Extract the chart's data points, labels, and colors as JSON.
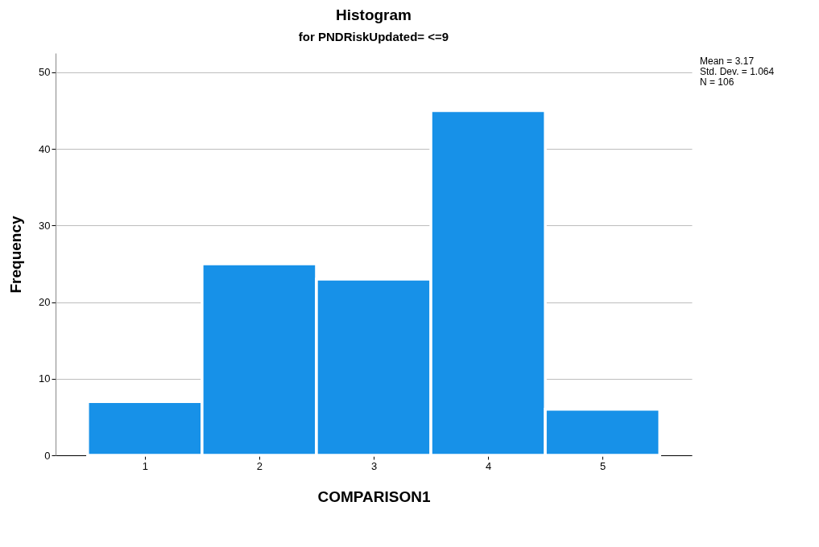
{
  "chart_data": {
    "type": "histogram",
    "title": "Histogram",
    "subtitle": "for PNDRiskUpdated= <=9",
    "xlabel": "COMPARISON1",
    "ylabel": "Frequency",
    "bins": [
      0.5,
      1.5,
      2.5,
      3.5,
      4.5,
      5.5
    ],
    "values": [
      7,
      25,
      23,
      45,
      6
    ],
    "color": "#1791e8",
    "xlim": [
      0.22,
      5.78
    ],
    "xticks": [
      1,
      2,
      3,
      4,
      5
    ],
    "ylim": [
      0,
      52.5
    ],
    "yticks": [
      0,
      10,
      20,
      30,
      40,
      50
    ],
    "grid": "y",
    "annotations": [
      "Mean = 3.17",
      "Std. Dev. = 1.064",
      "N = 106"
    ]
  }
}
